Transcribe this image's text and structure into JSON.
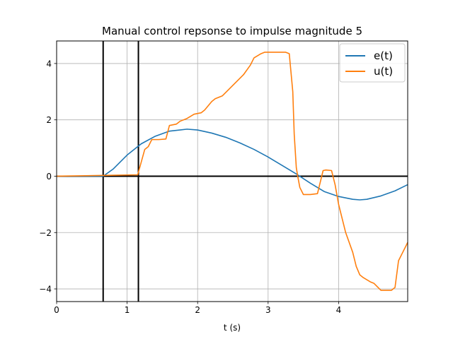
{
  "chart_data": {
    "type": "line",
    "title": "Manual control repsonse to impulse magnitude 5",
    "xlabel": "t (s)",
    "ylabel": "",
    "xlim": [
      0,
      4.98
    ],
    "ylim": [
      -4.45,
      4.8
    ],
    "grid": true,
    "legend_position": "top-right",
    "x_ticks": [
      0,
      1,
      2,
      3,
      4
    ],
    "x_tick_labels": [
      "0",
      "1",
      "2",
      "3",
      "4"
    ],
    "y_ticks": [
      -4,
      -2,
      0,
      2,
      4
    ],
    "y_tick_labels": [
      "−4",
      "−2",
      "0",
      "2",
      "4"
    ],
    "vertical_lines": [
      0.66,
      1.16
    ],
    "horizontal_lines": [
      0
    ],
    "series": [
      {
        "name": "e(t)",
        "color": "#1f77b4",
        "x": [
          0,
          0.66,
          0.8,
          1.0,
          1.2,
          1.4,
          1.6,
          1.85,
          2.0,
          2.2,
          2.4,
          2.6,
          2.8,
          3.0,
          3.2,
          3.4,
          3.6,
          3.8,
          4.0,
          4.2,
          4.3,
          4.4,
          4.6,
          4.8,
          4.98
        ],
        "y": [
          0,
          0,
          0.25,
          0.75,
          1.15,
          1.42,
          1.6,
          1.67,
          1.64,
          1.53,
          1.38,
          1.18,
          0.95,
          0.68,
          0.38,
          0.08,
          -0.25,
          -0.55,
          -0.72,
          -0.82,
          -0.84,
          -0.82,
          -0.7,
          -0.52,
          -0.3
        ]
      },
      {
        "name": "u(t)",
        "color": "#ff7f0e",
        "x": [
          0,
          1.15,
          1.2,
          1.25,
          1.3,
          1.35,
          1.45,
          1.55,
          1.6,
          1.7,
          1.75,
          1.85,
          1.95,
          2.05,
          2.1,
          2.2,
          2.25,
          2.35,
          2.45,
          2.55,
          2.65,
          2.75,
          2.8,
          2.9,
          2.95,
          3.05,
          3.15,
          3.25,
          3.3,
          3.35,
          3.37,
          3.4,
          3.42,
          3.45,
          3.5,
          3.55,
          3.6,
          3.7,
          3.78,
          3.82,
          3.9,
          3.95,
          4.0,
          4.05,
          4.1,
          4.2,
          4.25,
          4.3,
          4.35,
          4.45,
          4.5,
          4.6,
          4.65,
          4.75,
          4.8,
          4.85,
          4.9,
          4.98
        ],
        "y": [
          0,
          0.05,
          0.5,
          0.95,
          1.05,
          1.3,
          1.3,
          1.32,
          1.8,
          1.85,
          1.95,
          2.05,
          2.2,
          2.25,
          2.35,
          2.65,
          2.75,
          2.85,
          3.1,
          3.35,
          3.6,
          3.95,
          4.2,
          4.35,
          4.4,
          4.4,
          4.4,
          4.4,
          4.35,
          3.0,
          1.5,
          0.3,
          0.0,
          -0.4,
          -0.65,
          -0.65,
          -0.65,
          -0.62,
          0.2,
          0.22,
          0.2,
          -0.3,
          -1.0,
          -1.5,
          -2.0,
          -2.7,
          -3.2,
          -3.5,
          -3.6,
          -3.75,
          -3.8,
          -4.05,
          -4.05,
          -4.05,
          -3.95,
          -3.0,
          -2.75,
          -2.35
        ]
      }
    ]
  }
}
